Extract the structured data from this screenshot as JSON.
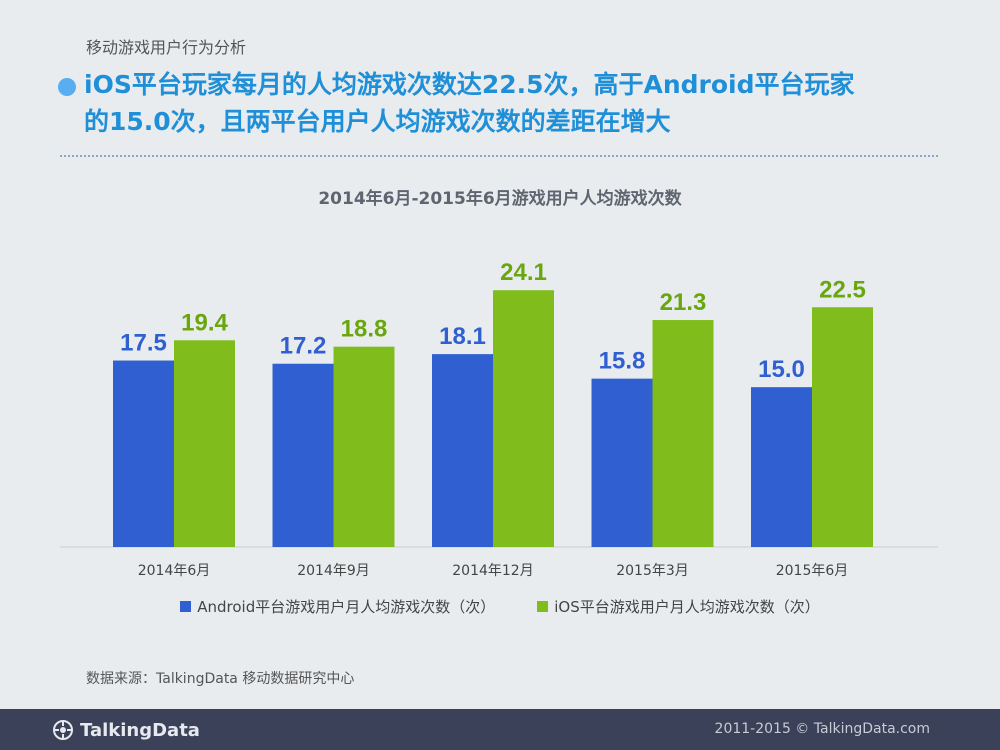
{
  "page": {
    "breadcrumb": "移动游戏用户行为分析",
    "headline": "iOS平台玩家每月的人均游戏次数达22.5次，高于Android平台玩家\n的15.0次，且两平台用户人均游戏次数的差距在增大",
    "source": "数据来源：TalkingData 移动数据研究中心",
    "footer_brand": "TalkingData",
    "footer_copyright": "2011-2015 © TalkingData.com"
  },
  "colors": {
    "accent": "#1f8fd8",
    "android": "#2f5fd0",
    "ios": "#7fbc1c",
    "footer_bg": "#3a4158"
  },
  "chart_data": {
    "type": "bar",
    "title": "2014年6月-2015年6月游戏用户人均游戏次数",
    "categories": [
      "2014年6月",
      "2014年9月",
      "2014年12月",
      "2015年3月",
      "2015年6月"
    ],
    "series": [
      {
        "name": "Android平台游戏用户月人均游戏次数（次）",
        "values": [
          17.5,
          17.2,
          18.1,
          15.8,
          15.0
        ],
        "color": "#2f5fd0",
        "label_color": "#2f5fd0"
      },
      {
        "name": "iOS平台游戏用户月人均游戏次数（次）",
        "values": [
          19.4,
          18.8,
          24.1,
          21.3,
          22.5
        ],
        "color": "#7fbc1c",
        "label_color": "#6aa60e"
      }
    ],
    "ylim": [
      0,
      29
    ],
    "xlabel": "",
    "ylabel": "",
    "grid": false,
    "legend": "bottom"
  }
}
